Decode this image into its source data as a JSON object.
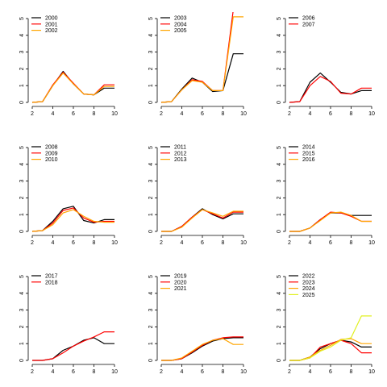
{
  "colors": {
    "series": [
      "#000000",
      "#ff0000",
      "#ffa500",
      "#e0f020"
    ],
    "axis": "#000000",
    "background": "#ffffff"
  },
  "chart_data": [
    {
      "type": "line",
      "x": [
        2,
        3,
        4,
        5,
        6,
        7,
        8,
        9,
        10
      ],
      "xlim": [
        2,
        10
      ],
      "ylim": [
        0,
        5
      ],
      "xticks": [
        "2",
        "4",
        "6",
        "8",
        "10"
      ],
      "yticks": [
        "0",
        "1",
        "2",
        "3",
        "4",
        "5"
      ],
      "legend_position": "top-left",
      "series": [
        {
          "name": "2000",
          "values": [
            0,
            0.05,
            1.0,
            1.85,
            1.1,
            0.5,
            0.45,
            0.85,
            0.85
          ]
        },
        {
          "name": "2001",
          "values": [
            0,
            0.05,
            1.05,
            1.8,
            1.15,
            0.5,
            0.45,
            1.05,
            1.05
          ]
        },
        {
          "name": "2002",
          "values": [
            0,
            0.05,
            1.0,
            1.75,
            1.1,
            0.5,
            0.45,
            0.95,
            0.95
          ]
        }
      ]
    },
    {
      "type": "line",
      "x": [
        2,
        3,
        4,
        5,
        6,
        7,
        8,
        9,
        10
      ],
      "xlim": [
        2,
        10
      ],
      "ylim": [
        0,
        5
      ],
      "xticks": [
        "2",
        "4",
        "6",
        "8",
        "10"
      ],
      "yticks": [
        "0",
        "1",
        "2",
        "3",
        "4",
        "5"
      ],
      "legend_position": "top-left",
      "series": [
        {
          "name": "2003",
          "values": [
            0,
            0.05,
            0.8,
            1.45,
            1.2,
            0.65,
            0.7,
            2.9,
            2.9
          ]
        },
        {
          "name": "2004",
          "values": [
            0,
            0.05,
            0.75,
            1.35,
            1.25,
            0.7,
            0.7,
            5.5,
            5.5
          ]
        },
        {
          "name": "2005",
          "values": [
            0,
            0.05,
            0.75,
            1.3,
            1.2,
            0.7,
            0.7,
            5.1,
            5.1
          ]
        }
      ]
    },
    {
      "type": "line",
      "x": [
        2,
        3,
        4,
        5,
        6,
        7,
        8,
        9,
        10
      ],
      "xlim": [
        2,
        10
      ],
      "ylim": [
        0,
        5
      ],
      "xticks": [
        "2",
        "4",
        "6",
        "8",
        "10"
      ],
      "yticks": [
        "0",
        "1",
        "2",
        "3",
        "4",
        "5"
      ],
      "legend_position": "top-left",
      "series": [
        {
          "name": "2006",
          "values": [
            0,
            0.05,
            1.2,
            1.75,
            1.2,
            0.6,
            0.5,
            0.7,
            0.7
          ]
        },
        {
          "name": "2007",
          "values": [
            0,
            0.05,
            1.0,
            1.55,
            1.25,
            0.55,
            0.5,
            0.85,
            0.85
          ]
        }
      ]
    },
    {
      "type": "line",
      "x": [
        2,
        3,
        4,
        5,
        6,
        7,
        8,
        9,
        10
      ],
      "xlim": [
        2,
        10
      ],
      "ylim": [
        0,
        5
      ],
      "xticks": [
        "2",
        "4",
        "6",
        "8",
        "10"
      ],
      "yticks": [
        "0",
        "1",
        "2",
        "3",
        "4",
        "5"
      ],
      "legend_position": "top-left",
      "series": [
        {
          "name": "2008",
          "values": [
            0,
            0.05,
            0.6,
            1.35,
            1.5,
            0.65,
            0.5,
            0.7,
            0.7
          ]
        },
        {
          "name": "2009",
          "values": [
            0,
            0.05,
            0.5,
            1.25,
            1.4,
            0.8,
            0.55,
            0.6,
            0.6
          ]
        },
        {
          "name": "2010",
          "values": [
            0,
            0.05,
            0.4,
            1.1,
            1.3,
            0.9,
            0.6,
            0.55,
            0.55
          ]
        }
      ]
    },
    {
      "type": "line",
      "x": [
        2,
        3,
        4,
        5,
        6,
        7,
        8,
        9,
        10
      ],
      "xlim": [
        2,
        10
      ],
      "ylim": [
        0,
        5
      ],
      "xticks": [
        "2",
        "4",
        "6",
        "8",
        "10"
      ],
      "yticks": [
        "0",
        "1",
        "2",
        "3",
        "4",
        "5"
      ],
      "legend_position": "top-left",
      "series": [
        {
          "name": "2011",
          "values": [
            0,
            0,
            0.3,
            0.85,
            1.35,
            1.0,
            0.75,
            1.05,
            1.05
          ]
        },
        {
          "name": "2012",
          "values": [
            0,
            0,
            0.3,
            0.85,
            1.3,
            1.05,
            0.8,
            1.15,
            1.15
          ]
        },
        {
          "name": "2013",
          "values": [
            0,
            0,
            0.25,
            0.8,
            1.3,
            1.1,
            0.9,
            1.2,
            1.2
          ]
        }
      ]
    },
    {
      "type": "line",
      "x": [
        2,
        3,
        4,
        5,
        6,
        7,
        8,
        9,
        10
      ],
      "xlim": [
        2,
        10
      ],
      "ylim": [
        0,
        5
      ],
      "xticks": [
        "2",
        "4",
        "6",
        "8",
        "10"
      ],
      "yticks": [
        "0",
        "1",
        "2",
        "3",
        "4",
        "5"
      ],
      "legend_position": "top-left",
      "series": [
        {
          "name": "2014",
          "values": [
            0,
            0,
            0.2,
            0.7,
            1.1,
            1.1,
            0.95,
            0.95,
            0.95
          ]
        },
        {
          "name": "2015",
          "values": [
            0,
            0,
            0.2,
            0.7,
            1.15,
            1.1,
            0.9,
            0.6,
            0.6
          ]
        },
        {
          "name": "2016",
          "values": [
            0,
            0,
            0.2,
            0.65,
            1.1,
            1.15,
            0.95,
            0.6,
            0.6
          ]
        }
      ]
    },
    {
      "type": "line",
      "x": [
        2,
        3,
        4,
        5,
        6,
        7,
        8,
        9,
        10
      ],
      "xlim": [
        2,
        10
      ],
      "ylim": [
        0,
        5
      ],
      "xticks": [
        "2",
        "4",
        "6",
        "8",
        "10"
      ],
      "yticks": [
        "0",
        "1",
        "2",
        "3",
        "4",
        "5"
      ],
      "legend_position": "top-left",
      "series": [
        {
          "name": "2017",
          "values": [
            0,
            0,
            0.1,
            0.6,
            0.85,
            1.2,
            1.35,
            1.0,
            1.0
          ]
        },
        {
          "name": "2018",
          "values": [
            0,
            0,
            0.1,
            0.45,
            0.85,
            1.15,
            1.4,
            1.7,
            1.7
          ]
        }
      ]
    },
    {
      "type": "line",
      "x": [
        2,
        3,
        4,
        5,
        6,
        7,
        8,
        9,
        10
      ],
      "xlim": [
        2,
        10
      ],
      "ylim": [
        0,
        5
      ],
      "xticks": [
        "2",
        "4",
        "6",
        "8",
        "10"
      ],
      "yticks": [
        "0",
        "1",
        "2",
        "3",
        "4",
        "5"
      ],
      "legend_position": "top-left",
      "series": [
        {
          "name": "2019",
          "values": [
            0,
            0,
            0.1,
            0.45,
            0.85,
            1.15,
            1.3,
            1.35,
            1.35
          ]
        },
        {
          "name": "2020",
          "values": [
            0,
            0,
            0.1,
            0.5,
            0.9,
            1.2,
            1.35,
            1.4,
            1.4
          ]
        },
        {
          "name": "2021",
          "values": [
            0,
            0,
            0.15,
            0.55,
            0.95,
            1.2,
            1.3,
            0.95,
            0.95
          ]
        }
      ]
    },
    {
      "type": "line",
      "x": [
        2,
        3,
        4,
        5,
        6,
        7,
        8,
        9,
        10
      ],
      "xlim": [
        2,
        10
      ],
      "ylim": [
        0,
        5
      ],
      "xticks": [
        "2",
        "4",
        "6",
        "8",
        "10"
      ],
      "yticks": [
        "0",
        "1",
        "2",
        "3",
        "4",
        "5"
      ],
      "legend_position": "top-left",
      "series": [
        {
          "name": "2022",
          "values": [
            0,
            0,
            0.2,
            0.7,
            1.0,
            1.2,
            1.1,
            0.8,
            0.8
          ]
        },
        {
          "name": "2023",
          "values": [
            0,
            0,
            0.15,
            0.8,
            1.0,
            1.2,
            1.0,
            0.45,
            0.45
          ]
        },
        {
          "name": "2024",
          "values": [
            0,
            0,
            0.2,
            0.6,
            0.9,
            1.25,
            1.3,
            1.0,
            1.0
          ]
        },
        {
          "name": "2025",
          "values": [
            0,
            0,
            0.15,
            0.55,
            0.8,
            1.2,
            1.35,
            2.65,
            2.65
          ]
        }
      ]
    }
  ]
}
